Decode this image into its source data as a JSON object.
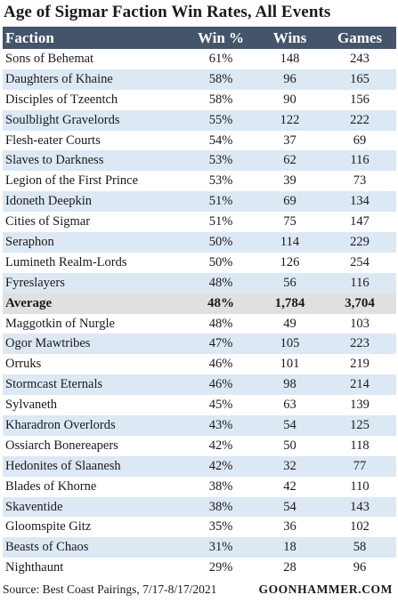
{
  "chart_data": {
    "type": "table",
    "title": "Age of Sigmar Faction Win Rates, All Events",
    "columns": [
      "Faction",
      "Win %",
      "Wins",
      "Games"
    ],
    "rows": [
      {
        "faction": "Sons of Behemat",
        "win_pct": "61%",
        "wins": "148",
        "games": "243",
        "highlight": false
      },
      {
        "faction": "Daughters of Khaine",
        "win_pct": "58%",
        "wins": "96",
        "games": "165",
        "highlight": false
      },
      {
        "faction": "Disciples of Tzeentch",
        "win_pct": "58%",
        "wins": "90",
        "games": "156",
        "highlight": false
      },
      {
        "faction": "Soulblight Gravelords",
        "win_pct": "55%",
        "wins": "122",
        "games": "222",
        "highlight": false
      },
      {
        "faction": "Flesh-eater Courts",
        "win_pct": "54%",
        "wins": "37",
        "games": "69",
        "highlight": false
      },
      {
        "faction": "Slaves to Darkness",
        "win_pct": "53%",
        "wins": "62",
        "games": "116",
        "highlight": false
      },
      {
        "faction": "Legion of the First Prince",
        "win_pct": "53%",
        "wins": "39",
        "games": "73",
        "highlight": false
      },
      {
        "faction": "Idoneth Deepkin",
        "win_pct": "51%",
        "wins": "69",
        "games": "134",
        "highlight": false
      },
      {
        "faction": "Cities of Sigmar",
        "win_pct": "51%",
        "wins": "75",
        "games": "147",
        "highlight": false
      },
      {
        "faction": "Seraphon",
        "win_pct": "50%",
        "wins": "114",
        "games": "229",
        "highlight": false
      },
      {
        "faction": "Lumineth Realm-Lords",
        "win_pct": "50%",
        "wins": "126",
        "games": "254",
        "highlight": false
      },
      {
        "faction": "Fyreslayers",
        "win_pct": "48%",
        "wins": "56",
        "games": "116",
        "highlight": false
      },
      {
        "faction": "Average",
        "win_pct": "48%",
        "wins": "1,784",
        "games": "3,704",
        "highlight": true
      },
      {
        "faction": "Maggotkin of Nurgle",
        "win_pct": "48%",
        "wins": "49",
        "games": "103",
        "highlight": false
      },
      {
        "faction": "Ogor Mawtribes",
        "win_pct": "47%",
        "wins": "105",
        "games": "223",
        "highlight": false
      },
      {
        "faction": "Orruks",
        "win_pct": "46%",
        "wins": "101",
        "games": "219",
        "highlight": false
      },
      {
        "faction": "Stormcast Eternals",
        "win_pct": "46%",
        "wins": "98",
        "games": "214",
        "highlight": false
      },
      {
        "faction": "Sylvaneth",
        "win_pct": "45%",
        "wins": "63",
        "games": "139",
        "highlight": false
      },
      {
        "faction": "Kharadron Overlords",
        "win_pct": "43%",
        "wins": "54",
        "games": "125",
        "highlight": false
      },
      {
        "faction": "Ossiarch Bonereapers",
        "win_pct": "42%",
        "wins": "50",
        "games": "118",
        "highlight": false
      },
      {
        "faction": "Hedonites of Slaanesh",
        "win_pct": "42%",
        "wins": "32",
        "games": "77",
        "highlight": false
      },
      {
        "faction": "Blades of Khorne",
        "win_pct": "38%",
        "wins": "42",
        "games": "110",
        "highlight": false
      },
      {
        "faction": "Skaventide",
        "win_pct": "38%",
        "wins": "54",
        "games": "143",
        "highlight": false
      },
      {
        "faction": "Gloomspite Gitz",
        "win_pct": "35%",
        "wins": "36",
        "games": "102",
        "highlight": false
      },
      {
        "faction": "Beasts of Chaos",
        "win_pct": "31%",
        "wins": "18",
        "games": "58",
        "highlight": false
      },
      {
        "faction": "Nighthaunt",
        "win_pct": "29%",
        "wins": "28",
        "games": "96",
        "highlight": false
      }
    ],
    "source": "Source: Best Coast Pairings, 7/17-8/17/2021",
    "brand": "GOONHAMMER.COM"
  },
  "colors": {
    "header_bg": "#44546a",
    "header_text": "#ffffff",
    "stripe": "#dde8f5",
    "average_bg": "#e0e0e0"
  }
}
